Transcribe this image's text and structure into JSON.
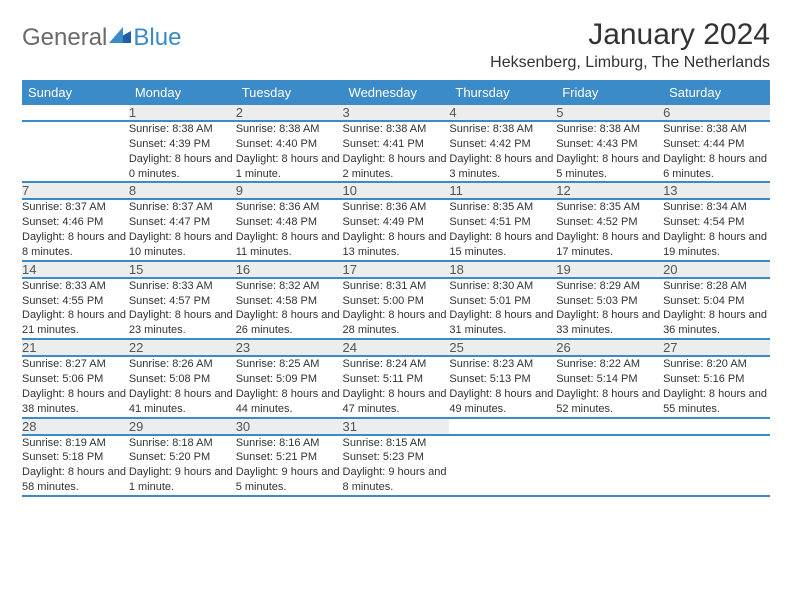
{
  "brand": {
    "part1": "General",
    "part2": "Blue",
    "part2_color": "#3b8bc8"
  },
  "title": "January 2024",
  "location": "Heksenberg, Limburg, The Netherlands",
  "colors": {
    "header_bg": "#3b8bc8",
    "header_text": "#ffffff",
    "daynum_bg": "#ededed",
    "row_divider": "#3b8bc8",
    "body_text": "#333333"
  },
  "typography": {
    "body_fontsize": 11,
    "header_fontsize": 13,
    "title_fontsize": 30,
    "location_fontsize": 16
  },
  "weekdays": [
    "Sunday",
    "Monday",
    "Tuesday",
    "Wednesday",
    "Thursday",
    "Friday",
    "Saturday"
  ],
  "weeks": [
    [
      null,
      {
        "num": "1",
        "sunrise": "Sunrise: 8:38 AM",
        "sunset": "Sunset: 4:39 PM",
        "daylight": "Daylight: 8 hours and 0 minutes."
      },
      {
        "num": "2",
        "sunrise": "Sunrise: 8:38 AM",
        "sunset": "Sunset: 4:40 PM",
        "daylight": "Daylight: 8 hours and 1 minute."
      },
      {
        "num": "3",
        "sunrise": "Sunrise: 8:38 AM",
        "sunset": "Sunset: 4:41 PM",
        "daylight": "Daylight: 8 hours and 2 minutes."
      },
      {
        "num": "4",
        "sunrise": "Sunrise: 8:38 AM",
        "sunset": "Sunset: 4:42 PM",
        "daylight": "Daylight: 8 hours and 3 minutes."
      },
      {
        "num": "5",
        "sunrise": "Sunrise: 8:38 AM",
        "sunset": "Sunset: 4:43 PM",
        "daylight": "Daylight: 8 hours and 5 minutes."
      },
      {
        "num": "6",
        "sunrise": "Sunrise: 8:38 AM",
        "sunset": "Sunset: 4:44 PM",
        "daylight": "Daylight: 8 hours and 6 minutes."
      }
    ],
    [
      {
        "num": "7",
        "sunrise": "Sunrise: 8:37 AM",
        "sunset": "Sunset: 4:46 PM",
        "daylight": "Daylight: 8 hours and 8 minutes."
      },
      {
        "num": "8",
        "sunrise": "Sunrise: 8:37 AM",
        "sunset": "Sunset: 4:47 PM",
        "daylight": "Daylight: 8 hours and 10 minutes."
      },
      {
        "num": "9",
        "sunrise": "Sunrise: 8:36 AM",
        "sunset": "Sunset: 4:48 PM",
        "daylight": "Daylight: 8 hours and 11 minutes."
      },
      {
        "num": "10",
        "sunrise": "Sunrise: 8:36 AM",
        "sunset": "Sunset: 4:49 PM",
        "daylight": "Daylight: 8 hours and 13 minutes."
      },
      {
        "num": "11",
        "sunrise": "Sunrise: 8:35 AM",
        "sunset": "Sunset: 4:51 PM",
        "daylight": "Daylight: 8 hours and 15 minutes."
      },
      {
        "num": "12",
        "sunrise": "Sunrise: 8:35 AM",
        "sunset": "Sunset: 4:52 PM",
        "daylight": "Daylight: 8 hours and 17 minutes."
      },
      {
        "num": "13",
        "sunrise": "Sunrise: 8:34 AM",
        "sunset": "Sunset: 4:54 PM",
        "daylight": "Daylight: 8 hours and 19 minutes."
      }
    ],
    [
      {
        "num": "14",
        "sunrise": "Sunrise: 8:33 AM",
        "sunset": "Sunset: 4:55 PM",
        "daylight": "Daylight: 8 hours and 21 minutes."
      },
      {
        "num": "15",
        "sunrise": "Sunrise: 8:33 AM",
        "sunset": "Sunset: 4:57 PM",
        "daylight": "Daylight: 8 hours and 23 minutes."
      },
      {
        "num": "16",
        "sunrise": "Sunrise: 8:32 AM",
        "sunset": "Sunset: 4:58 PM",
        "daylight": "Daylight: 8 hours and 26 minutes."
      },
      {
        "num": "17",
        "sunrise": "Sunrise: 8:31 AM",
        "sunset": "Sunset: 5:00 PM",
        "daylight": "Daylight: 8 hours and 28 minutes."
      },
      {
        "num": "18",
        "sunrise": "Sunrise: 8:30 AM",
        "sunset": "Sunset: 5:01 PM",
        "daylight": "Daylight: 8 hours and 31 minutes."
      },
      {
        "num": "19",
        "sunrise": "Sunrise: 8:29 AM",
        "sunset": "Sunset: 5:03 PM",
        "daylight": "Daylight: 8 hours and 33 minutes."
      },
      {
        "num": "20",
        "sunrise": "Sunrise: 8:28 AM",
        "sunset": "Sunset: 5:04 PM",
        "daylight": "Daylight: 8 hours and 36 minutes."
      }
    ],
    [
      {
        "num": "21",
        "sunrise": "Sunrise: 8:27 AM",
        "sunset": "Sunset: 5:06 PM",
        "daylight": "Daylight: 8 hours and 38 minutes."
      },
      {
        "num": "22",
        "sunrise": "Sunrise: 8:26 AM",
        "sunset": "Sunset: 5:08 PM",
        "daylight": "Daylight: 8 hours and 41 minutes."
      },
      {
        "num": "23",
        "sunrise": "Sunrise: 8:25 AM",
        "sunset": "Sunset: 5:09 PM",
        "daylight": "Daylight: 8 hours and 44 minutes."
      },
      {
        "num": "24",
        "sunrise": "Sunrise: 8:24 AM",
        "sunset": "Sunset: 5:11 PM",
        "daylight": "Daylight: 8 hours and 47 minutes."
      },
      {
        "num": "25",
        "sunrise": "Sunrise: 8:23 AM",
        "sunset": "Sunset: 5:13 PM",
        "daylight": "Daylight: 8 hours and 49 minutes."
      },
      {
        "num": "26",
        "sunrise": "Sunrise: 8:22 AM",
        "sunset": "Sunset: 5:14 PM",
        "daylight": "Daylight: 8 hours and 52 minutes."
      },
      {
        "num": "27",
        "sunrise": "Sunrise: 8:20 AM",
        "sunset": "Sunset: 5:16 PM",
        "daylight": "Daylight: 8 hours and 55 minutes."
      }
    ],
    [
      {
        "num": "28",
        "sunrise": "Sunrise: 8:19 AM",
        "sunset": "Sunset: 5:18 PM",
        "daylight": "Daylight: 8 hours and 58 minutes."
      },
      {
        "num": "29",
        "sunrise": "Sunrise: 8:18 AM",
        "sunset": "Sunset: 5:20 PM",
        "daylight": "Daylight: 9 hours and 1 minute."
      },
      {
        "num": "30",
        "sunrise": "Sunrise: 8:16 AM",
        "sunset": "Sunset: 5:21 PM",
        "daylight": "Daylight: 9 hours and 5 minutes."
      },
      {
        "num": "31",
        "sunrise": "Sunrise: 8:15 AM",
        "sunset": "Sunset: 5:23 PM",
        "daylight": "Daylight: 9 hours and 8 minutes."
      },
      null,
      null,
      null
    ]
  ]
}
